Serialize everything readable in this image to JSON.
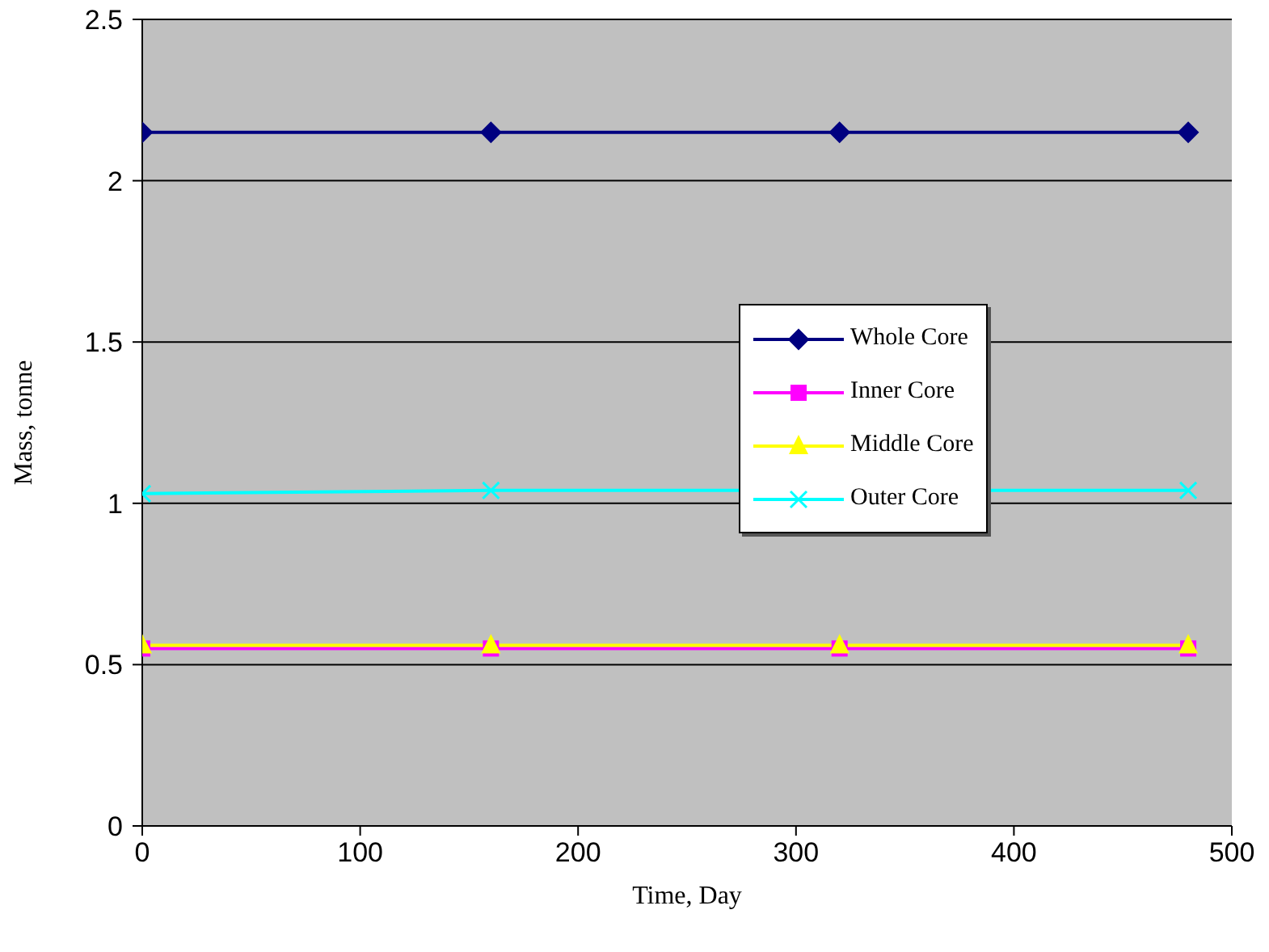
{
  "chart_data": {
    "type": "line",
    "xlabel": "Time, Day",
    "ylabel": "Mass, tonne",
    "x": [
      0,
      160,
      320,
      480
    ],
    "series": [
      {
        "name": "Whole Core",
        "color": "#000080",
        "marker": "diamond",
        "values": [
          2.15,
          2.15,
          2.15,
          2.15
        ]
      },
      {
        "name": "Inner Core",
        "color": "#ff00ff",
        "marker": "square",
        "values": [
          0.55,
          0.55,
          0.55,
          0.55
        ]
      },
      {
        "name": "Middle Core",
        "color": "#ffff00",
        "marker": "triangle",
        "values": [
          0.56,
          0.56,
          0.56,
          0.56
        ]
      },
      {
        "name": "Outer Core",
        "color": "#00ffff",
        "marker": "cross",
        "values": [
          1.03,
          1.04,
          null,
          1.04
        ]
      }
    ],
    "xlim": [
      0,
      500
    ],
    "xticks": [
      0,
      100,
      200,
      300,
      400,
      500
    ],
    "ylim": [
      0,
      2.5
    ],
    "yticks": [
      0,
      0.5,
      1,
      1.5,
      2,
      2.5
    ],
    "grid": "y",
    "legend": "right",
    "line_style": "solid"
  }
}
